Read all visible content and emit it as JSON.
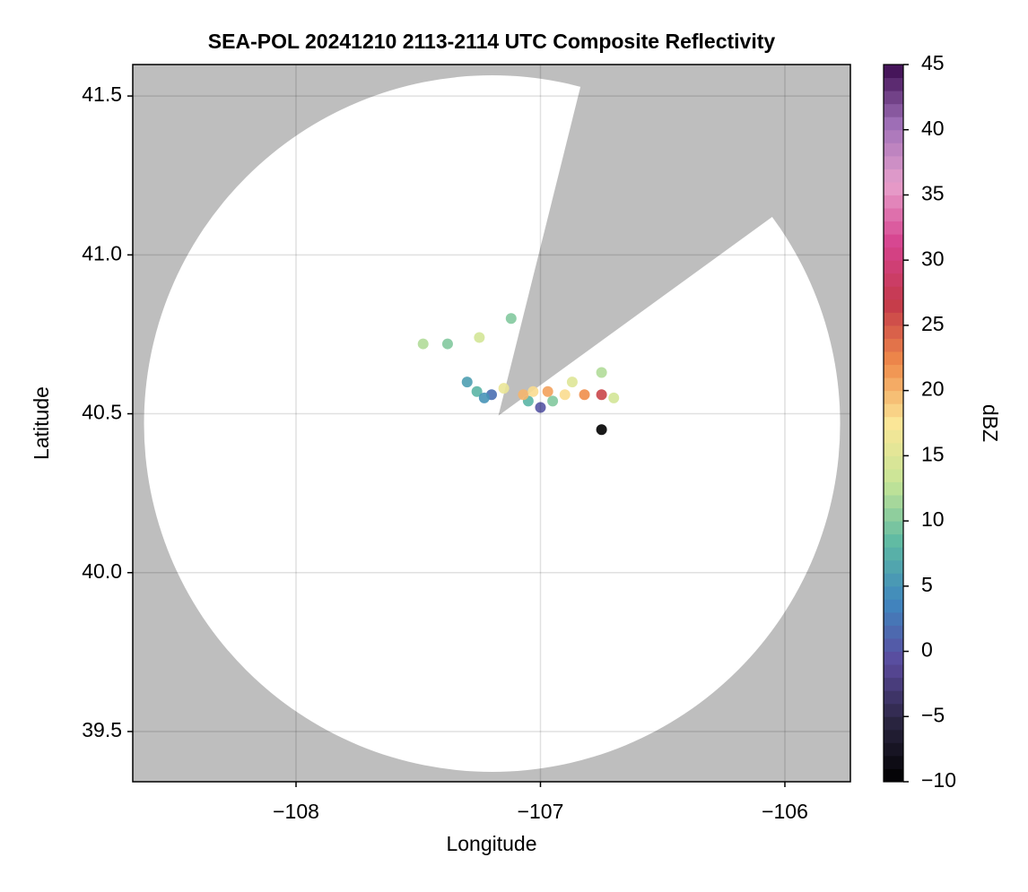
{
  "chart_data": {
    "type": "radar-map",
    "title": "SEA-POL 20241210 2113-2114 UTC Composite Reflectivity",
    "x_label": "Longitude",
    "y_label": "Latitude",
    "xlim": [
      -108.668,
      -105.732
    ],
    "ylim": [
      39.342,
      41.599
    ],
    "xticks": [
      {
        "value": -108,
        "label": "−108"
      },
      {
        "value": -107,
        "label": "−107"
      },
      {
        "value": -106,
        "label": "−106"
      }
    ],
    "yticks": [
      {
        "value": 39.5,
        "label": "39.5"
      },
      {
        "value": 40.0,
        "label": "40.0"
      },
      {
        "value": 40.5,
        "label": "40.5"
      },
      {
        "value": 41.0,
        "label": "41.0"
      },
      {
        "value": 41.5,
        "label": "41.5"
      }
    ],
    "grid": true,
    "background_color": "#bebebe",
    "coverage_color": "#ffffff",
    "coverage": {
      "center_lon": -107.198,
      "center_lat": 40.469,
      "radius_lon": 1.424,
      "radius_lat": 1.096
    },
    "blocked_sector": {
      "apex_lon": -107.172,
      "apex_lat": 40.494,
      "azimuths": [
        14,
        54
      ]
    },
    "points": {
      "lon": [
        -107.2,
        -107.26,
        -107.3,
        -107.0,
        -106.95,
        -107.05,
        -106.9,
        -106.82,
        -106.75,
        -106.7,
        -106.75,
        -107.48,
        -107.38,
        -107.25,
        -107.07,
        -107.03,
        -106.75,
        -107.12,
        -107.15,
        -106.87,
        -107.23,
        -106.97
      ],
      "lat": [
        40.56,
        40.57,
        40.6,
        40.52,
        40.54,
        40.54,
        40.56,
        40.56,
        40.56,
        40.55,
        40.63,
        40.72,
        40.72,
        40.74,
        40.56,
        40.57,
        40.45,
        40.8,
        40.58,
        40.6,
        40.55,
        40.57
      ],
      "dbz": [
        2,
        8,
        6,
        0,
        10,
        8,
        18,
        22,
        26,
        14,
        12,
        12,
        10,
        14,
        20,
        18,
        -10,
        10,
        16,
        15,
        5,
        21
      ]
    },
    "colorbar": {
      "label": "dBZ",
      "lim": [
        -10,
        45
      ],
      "ticks": [
        {
          "value": -10,
          "label": "−10"
        },
        {
          "value": -5,
          "label": "−5"
        },
        0,
        5,
        10,
        15,
        20,
        25,
        30,
        35,
        40,
        45
      ],
      "colors": [
        "#000000",
        "#2a2540",
        "#5b4a9e",
        "#3f86bf",
        "#5db9a3",
        "#c6e597",
        "#fbe697",
        "#f08c4a",
        "#c43a4a",
        "#d6428e",
        "#e7a0cc",
        "#a070b8",
        "#3b0a4e"
      ]
    }
  }
}
